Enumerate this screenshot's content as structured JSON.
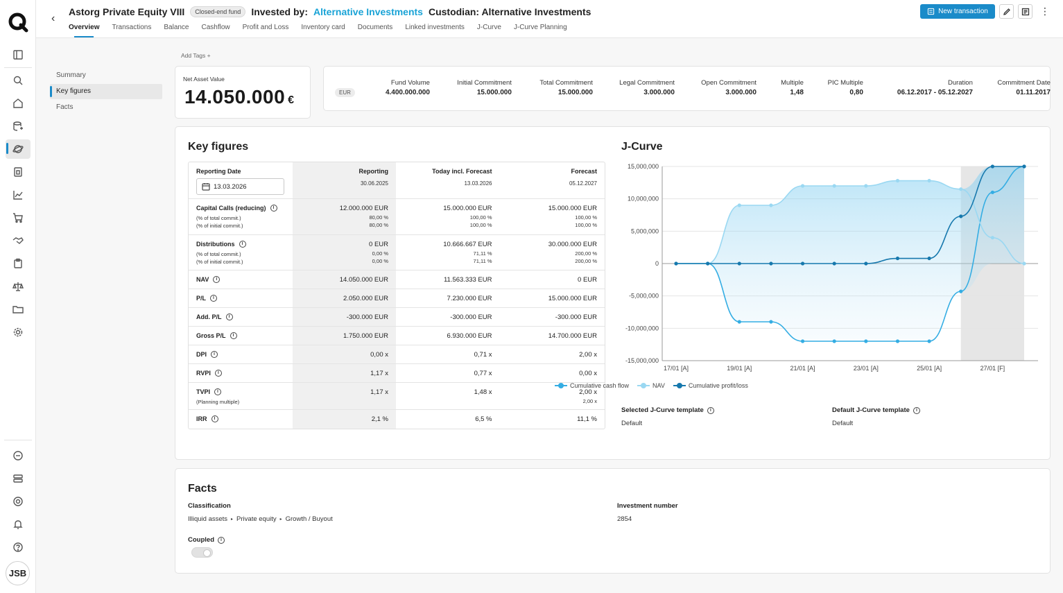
{
  "header": {
    "fund_name": "Astorg Private Equity VIII",
    "fund_type_badge": "Closed-end fund",
    "invested_by_label": "Invested by:",
    "invested_by_value": "Alternative Investments",
    "custodian": "Custodian: Alternative Investments",
    "new_transaction_label": "New transaction",
    "tabs": [
      "Overview",
      "Transactions",
      "Balance",
      "Cashflow",
      "Profit and Loss",
      "Inventory card",
      "Documents",
      "Linked investments",
      "J-Curve",
      "J-Curve Planning"
    ]
  },
  "add_tags": "Add Tags +",
  "subnav": [
    "Summary",
    "Key figures",
    "Facts"
  ],
  "nav_card": {
    "label": "Net Asset Value",
    "value": "14.050.000",
    "currency": "€"
  },
  "metrics": {
    "currency_pill": "EUR",
    "items": [
      {
        "label": "Fund Volume",
        "value": "4.400.000.000"
      },
      {
        "label": "Initial Commitment",
        "value": "15.000.000"
      },
      {
        "label": "Total Commitment",
        "value": "15.000.000"
      },
      {
        "label": "Legal Commitment",
        "value": "3.000.000"
      },
      {
        "label": "Open Commitment",
        "value": "3.000.000"
      },
      {
        "label": "Multiple",
        "value": "1,48"
      },
      {
        "label": "PIC Multiple",
        "value": "0,80"
      },
      {
        "label": "Duration",
        "value": "06.12.2017 - 05.12.2027"
      },
      {
        "label": "Commitment Date",
        "value": "01.11.2017"
      }
    ]
  },
  "key_figures": {
    "title": "Key figures",
    "header": {
      "reporting_date_label": "Reporting Date",
      "reporting_date_value": "13.03.2026",
      "cols": [
        {
          "name": "Reporting",
          "date": "30.06.2025"
        },
        {
          "name": "Today incl. Forecast",
          "date": "13.03.2026"
        },
        {
          "name": "Forecast",
          "date": "05.12.2027"
        }
      ]
    },
    "rows": [
      {
        "name": "Capital Calls (reducing)",
        "sub": [
          "(% of total commit.)",
          "(% of initial commit.)"
        ],
        "vals": [
          [
            "12.000.000 EUR",
            "80,00 %",
            "80,00 %"
          ],
          [
            "15.000.000 EUR",
            "100,00 %",
            "100,00 %"
          ],
          [
            "15.000.000 EUR",
            "100,00 %",
            "100,00 %"
          ]
        ]
      },
      {
        "name": "Distributions",
        "sub": [
          "(% of total commit.)",
          "(% of initial commit.)"
        ],
        "vals": [
          [
            "0 EUR",
            "0,00 %",
            "0,00 %"
          ],
          [
            "10.666.667 EUR",
            "71,11 %",
            "71,11 %"
          ],
          [
            "30.000.000 EUR",
            "200,00 %",
            "200,00 %"
          ]
        ]
      },
      {
        "name": "NAV",
        "vals": [
          [
            "14.050.000 EUR"
          ],
          [
            "11.563.333 EUR"
          ],
          [
            "0 EUR"
          ]
        ]
      },
      {
        "name": "P/L",
        "vals": [
          [
            "2.050.000 EUR"
          ],
          [
            "7.230.000 EUR"
          ],
          [
            "15.000.000 EUR"
          ]
        ]
      },
      {
        "name": "Add. P/L",
        "vals": [
          [
            "-300.000 EUR"
          ],
          [
            "-300.000 EUR"
          ],
          [
            "-300.000 EUR"
          ]
        ]
      },
      {
        "name": "Gross P/L",
        "vals": [
          [
            "1.750.000 EUR"
          ],
          [
            "6.930.000 EUR"
          ],
          [
            "14.700.000 EUR"
          ]
        ]
      },
      {
        "name": "DPI",
        "vals": [
          [
            "0,00 x"
          ],
          [
            "0,71 x"
          ],
          [
            "2,00 x"
          ]
        ]
      },
      {
        "name": "RVPI",
        "vals": [
          [
            "1,17 x"
          ],
          [
            "0,77 x"
          ],
          [
            "0,00 x"
          ]
        ]
      },
      {
        "name": "TVPI",
        "sub": [
          "(Planning multiple)"
        ],
        "vals": [
          [
            "1,17 x"
          ],
          [
            "1,48 x"
          ],
          [
            "2,00 x",
            "2,00 x"
          ]
        ]
      },
      {
        "name": "IRR",
        "vals": [
          [
            "2,1 %"
          ],
          [
            "6,5 %"
          ],
          [
            "11,1 %"
          ]
        ]
      }
    ]
  },
  "jcurve": {
    "title": "J-Curve",
    "selected_template_label": "Selected J-Curve template",
    "selected_template_value": "Default",
    "default_template_label": "Default J-Curve template",
    "default_template_value": "Default"
  },
  "chart_data": {
    "type": "line",
    "title": "J-Curve",
    "x": [
      "17/01",
      "18/01",
      "19/01",
      "20/01",
      "21/01",
      "22/01",
      "23/01",
      "24/01",
      "25/01",
      "26/01",
      "27/01",
      "28/01"
    ],
    "xtick_labels": [
      "17/01 [A]",
      "19/01 [A]",
      "21/01 [A]",
      "23/01 [A]",
      "25/01 [A]",
      "27/01 [F]"
    ],
    "ytick_labels": [
      "15,000,000",
      "10,000,000",
      "5,000,000",
      "0",
      "-5,000,000",
      "-10,000,000",
      "-15,000,000"
    ],
    "ylim": [
      -15000000,
      15000000
    ],
    "forecast_region": [
      "26/01",
      "28/01"
    ],
    "series": [
      {
        "name": "Cumulative cash flow",
        "color": "#34ade3",
        "values": [
          0,
          0,
          -9000000,
          -9000000,
          -12000000,
          -12000000,
          -12000000,
          -12000000,
          -12000000,
          -4300000,
          11000000,
          15000000
        ]
      },
      {
        "name": "NAV",
        "color": "#9ad8f2",
        "values": [
          0,
          0,
          9000000,
          9000000,
          12000000,
          12000000,
          12000000,
          12800000,
          12800000,
          11500000,
          4000000,
          0
        ]
      },
      {
        "name": "Cumulative profit/loss",
        "color": "#1678ad",
        "values": [
          0,
          0,
          0,
          0,
          0,
          0,
          0,
          800000,
          800000,
          7300000,
          15000000,
          15000000
        ]
      }
    ]
  },
  "facts": {
    "title": "Facts",
    "classification_label": "Classification",
    "classification_path": [
      "Illiquid assets",
      "Private equity",
      "Growth / Buyout"
    ],
    "investment_number_label": "Investment number",
    "investment_number_value": "2854",
    "coupled_label": "Coupled"
  },
  "user": {
    "initials": "JSB"
  }
}
